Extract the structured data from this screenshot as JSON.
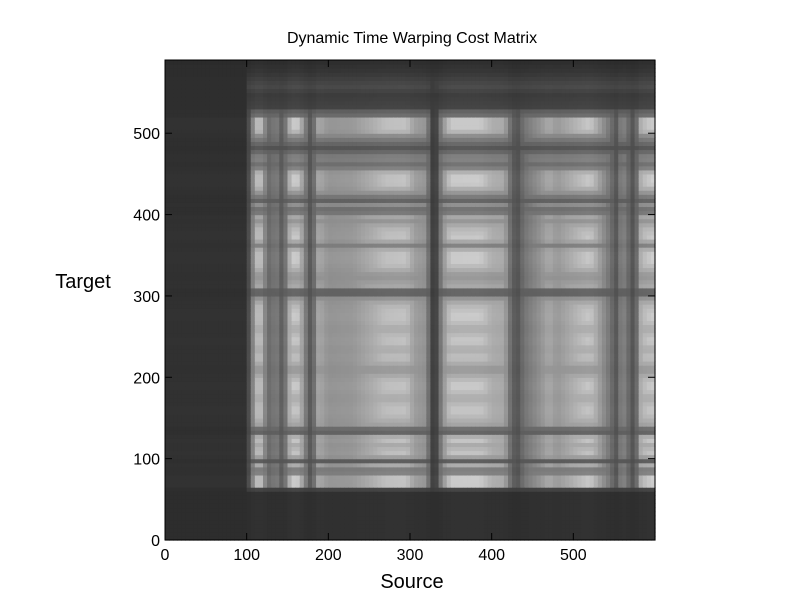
{
  "chart_data": {
    "type": "heatmap",
    "title": "Dynamic Time Warping Cost Matrix",
    "xlabel": "Source",
    "ylabel": "Target",
    "xlim": [
      0,
      600
    ],
    "ylim": [
      0,
      590
    ],
    "x_ticks": [
      0,
      100,
      200,
      300,
      400,
      500
    ],
    "y_ticks": [
      0,
      100,
      200,
      300,
      400,
      500
    ],
    "colormap": "grayscale (dark = low cost, light = high cost)",
    "grid": false,
    "legend": "none",
    "source_profile": [
      [
        0,
        0.12
      ],
      [
        100,
        0.12
      ],
      [
        108,
        0.55
      ],
      [
        115,
        0.9
      ],
      [
        122,
        0.55
      ],
      [
        128,
        0.4
      ],
      [
        135,
        0.48
      ],
      [
        140,
        0.45
      ],
      [
        145,
        0.25
      ],
      [
        150,
        0.65
      ],
      [
        160,
        0.92
      ],
      [
        170,
        0.6
      ],
      [
        175,
        0.35
      ],
      [
        180,
        0.3
      ],
      [
        188,
        0.7
      ],
      [
        200,
        0.6
      ],
      [
        230,
        0.62
      ],
      [
        255,
        0.72
      ],
      [
        270,
        0.8
      ],
      [
        295,
        0.82
      ],
      [
        305,
        0.65
      ],
      [
        320,
        0.6
      ],
      [
        326,
        0.2
      ],
      [
        332,
        0.2
      ],
      [
        340,
        0.58
      ],
      [
        350,
        0.85
      ],
      [
        385,
        0.86
      ],
      [
        400,
        0.72
      ],
      [
        415,
        0.7
      ],
      [
        425,
        0.35
      ],
      [
        432,
        0.3
      ],
      [
        440,
        0.45
      ],
      [
        460,
        0.6
      ],
      [
        470,
        0.7
      ],
      [
        480,
        0.62
      ],
      [
        495,
        0.7
      ],
      [
        520,
        0.85
      ],
      [
        535,
        0.6
      ],
      [
        545,
        0.45
      ],
      [
        552,
        0.3
      ],
      [
        560,
        0.55
      ],
      [
        570,
        0.35
      ],
      [
        575,
        0.25
      ],
      [
        583,
        0.75
      ],
      [
        600,
        0.9
      ]
    ],
    "target_profile": [
      [
        0,
        0.12
      ],
      [
        62,
        0.12
      ],
      [
        66,
        0.85
      ],
      [
        80,
        0.88
      ],
      [
        84,
        0.3
      ],
      [
        92,
        0.75
      ],
      [
        98,
        0.3
      ],
      [
        105,
        0.85
      ],
      [
        118,
        0.7
      ],
      [
        125,
        0.9
      ],
      [
        130,
        0.55
      ],
      [
        135,
        0.2
      ],
      [
        140,
        0.65
      ],
      [
        160,
        0.85
      ],
      [
        175,
        0.7
      ],
      [
        190,
        0.88
      ],
      [
        210,
        0.6
      ],
      [
        225,
        0.82
      ],
      [
        235,
        0.7
      ],
      [
        245,
        0.86
      ],
      [
        260,
        0.7
      ],
      [
        275,
        0.88
      ],
      [
        290,
        0.75
      ],
      [
        300,
        0.55
      ],
      [
        305,
        0.2
      ],
      [
        312,
        0.7
      ],
      [
        325,
        0.6
      ],
      [
        345,
        0.9
      ],
      [
        355,
        0.85
      ],
      [
        362,
        0.5
      ],
      [
        372,
        0.85
      ],
      [
        385,
        0.75
      ],
      [
        392,
        0.6
      ],
      [
        398,
        0.7
      ],
      [
        405,
        0.35
      ],
      [
        412,
        0.6
      ],
      [
        418,
        0.35
      ],
      [
        425,
        0.55
      ],
      [
        440,
        0.9
      ],
      [
        450,
        0.85
      ],
      [
        460,
        0.4
      ],
      [
        470,
        0.55
      ],
      [
        482,
        0.3
      ],
      [
        497,
        0.55
      ],
      [
        505,
        0.85
      ],
      [
        518,
        0.85
      ],
      [
        522,
        0.4
      ],
      [
        525,
        0.5
      ],
      [
        530,
        0.22
      ],
      [
        548,
        0.18
      ],
      [
        558,
        0.25
      ],
      [
        575,
        0.15
      ],
      [
        590,
        0.1
      ]
    ]
  }
}
